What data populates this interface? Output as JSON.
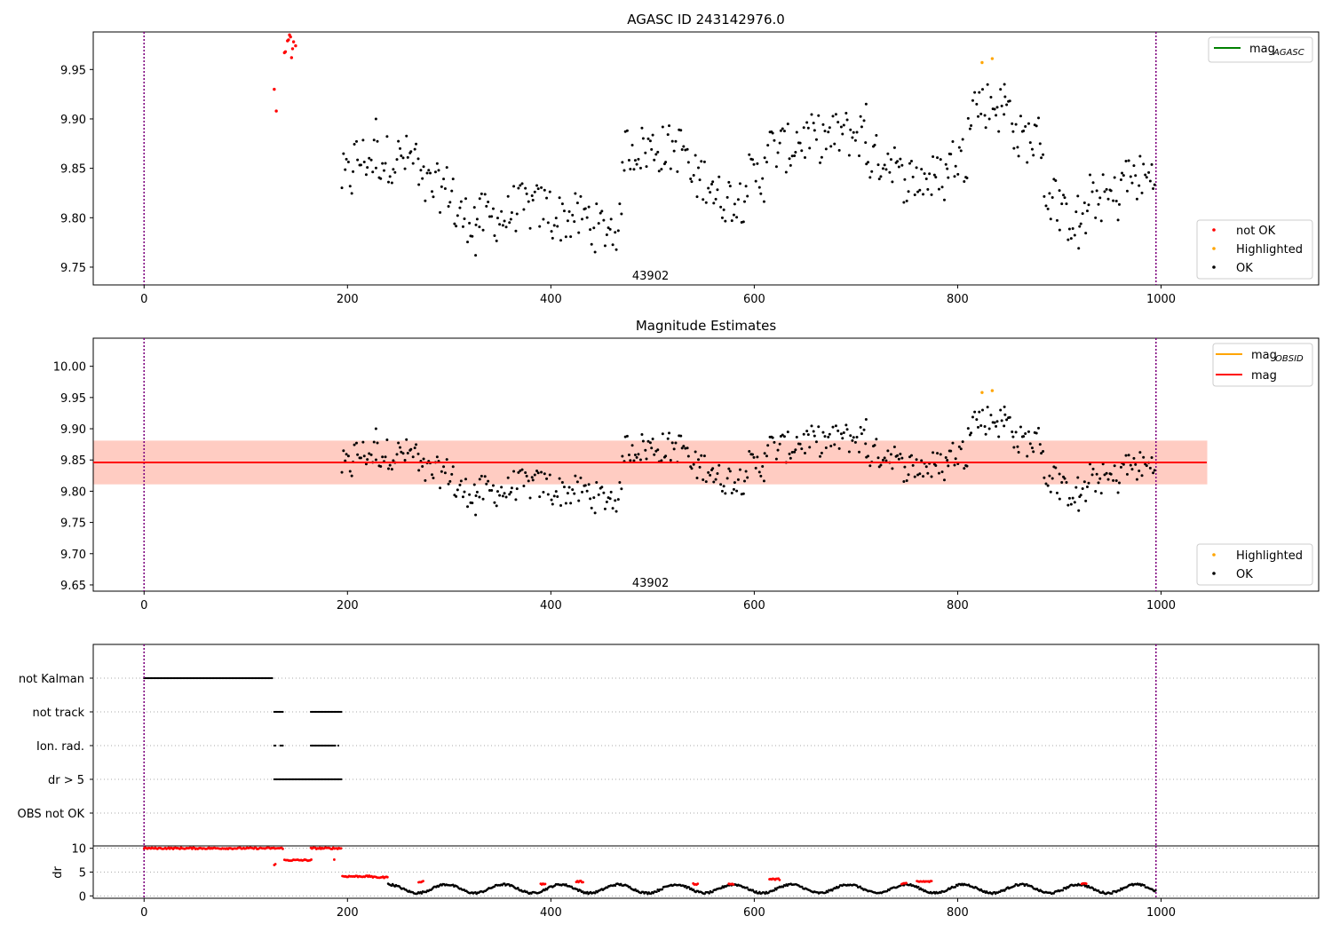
{
  "chart_data": [
    {
      "type": "scatter",
      "title": "AGASC ID 243142976.0",
      "xlim": [
        -50,
        1155
      ],
      "ylim": [
        9.732,
        9.988
      ],
      "xticks": [
        0,
        200,
        400,
        600,
        800,
        1000
      ],
      "yticks": [
        9.75,
        9.8,
        9.85,
        9.9,
        9.95
      ],
      "vlines": [
        0,
        995
      ],
      "annotation": {
        "text": "43902",
        "x": 498,
        "y": 9.742
      },
      "legend_lines": [
        {
          "label": "mag",
          "sub": "AGASC",
          "color": "#008000"
        }
      ],
      "legend_points": [
        {
          "label": "not OK",
          "color": "#ff0000"
        },
        {
          "label": "Highlighted",
          "color": "#ffa500"
        },
        {
          "label": "OK",
          "color": "#000000"
        }
      ],
      "series": [
        {
          "name": "not OK",
          "color": "#ff0000",
          "points": [
            [
              128,
              9.93
            ],
            [
              130,
              9.908
            ],
            [
              138,
              9.967
            ],
            [
              139,
              9.968
            ],
            [
              141,
              9.979
            ],
            [
              142,
              9.98
            ],
            [
              143,
              9.985
            ],
            [
              144,
              9.983
            ],
            [
              145,
              9.962
            ],
            [
              146,
              9.971
            ],
            [
              147,
              9.978
            ],
            [
              149,
              9.974
            ]
          ]
        },
        {
          "name": "Highlighted",
          "color": "#ffa500",
          "points": [
            [
              824,
              9.957
            ],
            [
              834,
              9.961
            ]
          ]
        },
        {
          "name": "OK",
          "color": "#000000",
          "generator": "walk",
          "segments": [
            [
              194,
              205,
              9.84
            ],
            [
              205,
              240,
              9.86
            ],
            [
              240,
              270,
              9.86
            ],
            [
              270,
              305,
              9.83
            ],
            [
              305,
              330,
              9.8
            ],
            [
              330,
              360,
              9.8
            ],
            [
              360,
              400,
              9.81
            ],
            [
              400,
              440,
              9.8
            ],
            [
              440,
              470,
              9.79
            ],
            [
              470,
              500,
              9.87
            ],
            [
              500,
              535,
              9.87
            ],
            [
              535,
              560,
              9.84
            ],
            [
              560,
              590,
              9.82
            ],
            [
              590,
              610,
              9.84
            ],
            [
              610,
              640,
              9.87
            ],
            [
              640,
              680,
              9.88
            ],
            [
              680,
              710,
              9.885
            ],
            [
              710,
              740,
              9.86
            ],
            [
              740,
              790,
              9.84
            ],
            [
              790,
              810,
              9.86
            ],
            [
              810,
              840,
              9.915
            ],
            [
              840,
              855,
              9.91
            ],
            [
              855,
              885,
              9.88
            ],
            [
              885,
              900,
              9.82
            ],
            [
              900,
              930,
              9.8
            ],
            [
              930,
              960,
              9.82
            ],
            [
              960,
              995,
              9.84
            ]
          ],
          "extremes": [
            [
              326,
              9.762
            ],
            [
              919,
              9.769
            ],
            [
              710,
              9.915
            ],
            [
              846,
              9.935
            ],
            [
              228,
              9.9
            ]
          ]
        }
      ]
    },
    {
      "type": "scatter",
      "title": "Magnitude Estimates",
      "xlim": [
        -50,
        1155
      ],
      "ylim": [
        9.64,
        10.045
      ],
      "xticks": [
        0,
        200,
        400,
        600,
        800,
        1000
      ],
      "yticks": [
        9.65,
        9.7,
        9.75,
        9.8,
        9.85,
        9.9,
        9.95,
        10.0
      ],
      "vlines": [
        0,
        995
      ],
      "annotation": {
        "text": "43902",
        "x": 498,
        "y": 9.654
      },
      "bands": [
        {
          "x": [
            -50,
            1045
          ],
          "y": [
            9.811,
            9.881
          ],
          "color": "#ffc0cb",
          "alpha": 0.45
        },
        {
          "x": [
            -50,
            1045
          ],
          "y": [
            9.811,
            9.881
          ],
          "color": "#ffa07a",
          "alpha": 0.35
        }
      ],
      "hlines": [
        {
          "y": 9.846,
          "x": [
            -50,
            1045
          ],
          "color": "#ff0000",
          "label": "mag"
        }
      ],
      "legend_lines": [
        {
          "label": "mag",
          "sub": "OBSID",
          "color": "#ffa500"
        },
        {
          "label": "mag",
          "sub": "",
          "color": "#ff0000"
        }
      ],
      "legend_points": [
        {
          "label": "Highlighted",
          "color": "#ffa500"
        },
        {
          "label": "OK",
          "color": "#000000"
        }
      ],
      "series": [
        {
          "name": "Highlighted",
          "color": "#ffa500",
          "points": [
            [
              824,
              9.958
            ],
            [
              834,
              9.961
            ]
          ]
        },
        {
          "name": "OK",
          "color": "#000000",
          "same_as_panel": 0
        }
      ]
    },
    {
      "type": "scatter",
      "title": "",
      "xlim": [
        -50,
        1155
      ],
      "vlines": [
        0,
        995
      ],
      "categories": [
        "not Kalman",
        "not track",
        "Ion. rad.",
        "dr > 5",
        "OBS not OK"
      ],
      "flag_ranges": {
        "not Kalman": [
          [
            0,
            127
          ]
        ],
        "not track": [
          [
            128,
            137
          ],
          [
            164,
            194
          ]
        ],
        "Ion. rad.": [
          [
            128,
            130
          ],
          [
            134,
            137
          ],
          [
            164,
            188
          ],
          [
            191,
            192
          ]
        ],
        "dr > 5": [
          [
            128,
            194
          ]
        ],
        "OBS not OK": []
      }
    },
    {
      "type": "scatter",
      "title": "",
      "xlim": [
        -50,
        1155
      ],
      "ylim": [
        -0.5,
        10.5
      ],
      "xticks": [
        0,
        200,
        400,
        600,
        800,
        1000
      ],
      "yticks": [
        0,
        5,
        10
      ],
      "ylabel": "dr",
      "vlines": [
        0,
        995
      ],
      "red_points": [
        [
          0,
          137,
          10
        ],
        [
          128,
          130,
          6.6
        ],
        [
          138,
          165,
          7.5
        ],
        [
          164,
          194,
          10
        ],
        [
          187,
          188,
          7.7
        ],
        [
          195,
          225,
          4.1
        ],
        [
          225,
          240,
          3.9
        ],
        [
          270,
          275,
          3.0
        ],
        [
          390,
          395,
          2.5
        ],
        [
          425,
          432,
          3.0
        ],
        [
          540,
          545,
          2.5
        ],
        [
          575,
          580,
          2.5
        ],
        [
          615,
          625,
          3.5
        ],
        [
          745,
          750,
          2.6
        ],
        [
          760,
          775,
          3.0
        ],
        [
          922,
          927,
          2.6
        ]
      ],
      "black_range": [
        240,
        995
      ],
      "black_mean": 1.5
    }
  ]
}
